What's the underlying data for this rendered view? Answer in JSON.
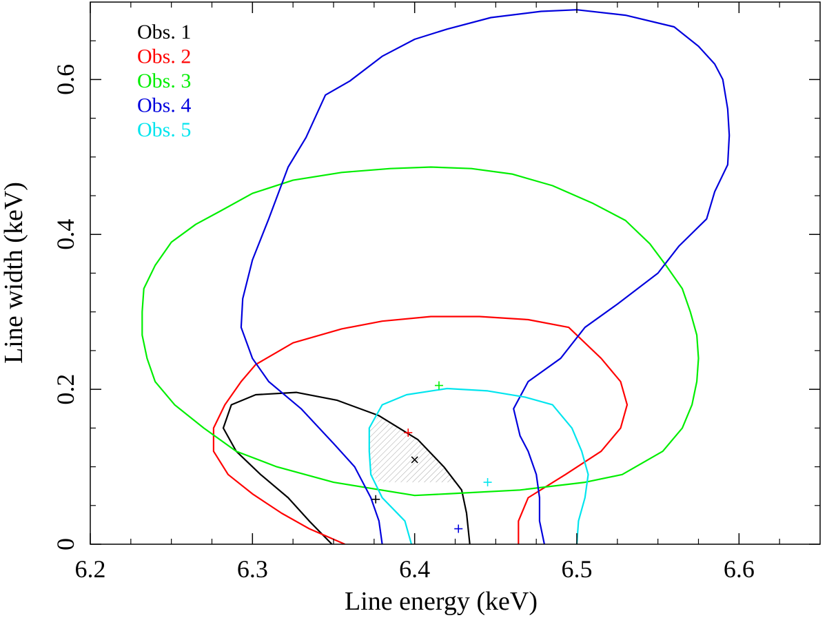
{
  "chart_data": {
    "type": "line",
    "title": "",
    "xlabel": "Line energy (keV)",
    "ylabel": "Line width (keV)",
    "xlim": [
      6.2,
      6.65
    ],
    "ylim": [
      0,
      0.7
    ],
    "xticks": [
      6.2,
      6.3,
      6.4,
      6.5,
      6.6
    ],
    "xtick_labels": [
      "6.2",
      "6.3",
      "6.4",
      "6.5",
      "6.6"
    ],
    "yticks": [
      0,
      0.2,
      0.4,
      0.6
    ],
    "ytick_labels": [
      "0",
      "0.2",
      "0.4",
      "0.6"
    ],
    "legend_position": "top-left",
    "grid": false,
    "series": [
      {
        "name": "Obs. 1",
        "color": "#000000",
        "closed": false,
        "points": [
          [
            6.349,
            0.0
          ],
          [
            6.335,
            0.03
          ],
          [
            6.322,
            0.06
          ],
          [
            6.305,
            0.09
          ],
          [
            6.29,
            0.12
          ],
          [
            6.282,
            0.15
          ],
          [
            6.287,
            0.18
          ],
          [
            6.302,
            0.193
          ],
          [
            6.327,
            0.196
          ],
          [
            6.352,
            0.186
          ],
          [
            6.378,
            0.166
          ],
          [
            6.402,
            0.135
          ],
          [
            6.418,
            0.1
          ],
          [
            6.429,
            0.07
          ],
          [
            6.432,
            0.04
          ],
          [
            6.434,
            0.0
          ]
        ],
        "best_fit": [
          6.376,
          0.058
        ],
        "best_fit_marker": "plus",
        "extra_marker": [
          6.4,
          0.109
        ],
        "extra_marker_style": "x"
      },
      {
        "name": "Obs. 2",
        "color": "#ff0000",
        "closed": false,
        "points": [
          [
            6.357,
            0.0
          ],
          [
            6.335,
            0.02
          ],
          [
            6.318,
            0.04
          ],
          [
            6.3,
            0.065
          ],
          [
            6.285,
            0.09
          ],
          [
            6.276,
            0.12
          ],
          [
            6.276,
            0.15
          ],
          [
            6.283,
            0.18
          ],
          [
            6.293,
            0.21
          ],
          [
            6.302,
            0.232
          ],
          [
            6.325,
            0.26
          ],
          [
            6.355,
            0.278
          ],
          [
            6.38,
            0.288
          ],
          [
            6.41,
            0.294
          ],
          [
            6.44,
            0.294
          ],
          [
            6.47,
            0.29
          ],
          [
            6.495,
            0.28
          ],
          [
            6.515,
            0.24
          ],
          [
            6.527,
            0.21
          ],
          [
            6.531,
            0.18
          ],
          [
            6.527,
            0.15
          ],
          [
            6.515,
            0.12
          ],
          [
            6.493,
            0.09
          ],
          [
            6.47,
            0.06
          ],
          [
            6.464,
            0.03
          ],
          [
            6.464,
            0.0
          ]
        ],
        "best_fit": [
          6.396,
          0.144
        ],
        "best_fit_marker": "plus"
      },
      {
        "name": "Obs. 3",
        "color": "#00ee00",
        "closed": true,
        "points": [
          [
            6.232,
            0.3
          ],
          [
            6.233,
            0.33
          ],
          [
            6.24,
            0.36
          ],
          [
            6.25,
            0.39
          ],
          [
            6.265,
            0.413
          ],
          [
            6.28,
            0.43
          ],
          [
            6.3,
            0.453
          ],
          [
            6.325,
            0.47
          ],
          [
            6.355,
            0.48
          ],
          [
            6.385,
            0.485
          ],
          [
            6.41,
            0.487
          ],
          [
            6.435,
            0.485
          ],
          [
            6.46,
            0.478
          ],
          [
            6.485,
            0.463
          ],
          [
            6.51,
            0.44
          ],
          [
            6.53,
            0.418
          ],
          [
            6.545,
            0.388
          ],
          [
            6.555,
            0.36
          ],
          [
            6.565,
            0.33
          ],
          [
            6.57,
            0.3
          ],
          [
            6.574,
            0.27
          ],
          [
            6.575,
            0.24
          ],
          [
            6.574,
            0.21
          ],
          [
            6.571,
            0.18
          ],
          [
            6.565,
            0.15
          ],
          [
            6.553,
            0.12
          ],
          [
            6.528,
            0.09
          ],
          [
            6.505,
            0.08
          ],
          [
            6.465,
            0.07
          ],
          [
            6.42,
            0.065
          ],
          [
            6.4,
            0.063
          ],
          [
            6.35,
            0.08
          ],
          [
            6.315,
            0.1
          ],
          [
            6.29,
            0.12
          ],
          [
            6.27,
            0.15
          ],
          [
            6.252,
            0.18
          ],
          [
            6.24,
            0.21
          ],
          [
            6.235,
            0.24
          ],
          [
            6.232,
            0.27
          ]
        ],
        "best_fit": [
          6.415,
          0.205
        ],
        "best_fit_marker": "plus"
      },
      {
        "name": "Obs. 4",
        "color": "#0000dd",
        "closed": false,
        "points": [
          [
            6.38,
            0.0
          ],
          [
            6.378,
            0.03
          ],
          [
            6.373,
            0.06
          ],
          [
            6.363,
            0.1
          ],
          [
            6.35,
            0.13
          ],
          [
            6.33,
            0.175
          ],
          [
            6.31,
            0.21
          ],
          [
            6.3,
            0.24
          ],
          [
            6.293,
            0.28
          ],
          [
            6.294,
            0.317
          ],
          [
            6.3,
            0.367
          ],
          [
            6.31,
            0.42
          ],
          [
            6.322,
            0.487
          ],
          [
            6.333,
            0.525
          ],
          [
            6.345,
            0.58
          ],
          [
            6.36,
            0.598
          ],
          [
            6.38,
            0.63
          ],
          [
            6.4,
            0.652
          ],
          [
            6.42,
            0.665
          ],
          [
            6.447,
            0.68
          ],
          [
            6.478,
            0.688
          ],
          [
            6.5,
            0.69
          ],
          [
            6.53,
            0.683
          ],
          [
            6.56,
            0.668
          ],
          [
            6.575,
            0.643
          ],
          [
            6.585,
            0.62
          ],
          [
            6.59,
            0.6
          ],
          [
            6.593,
            0.562
          ],
          [
            6.594,
            0.528
          ],
          [
            6.593,
            0.49
          ],
          [
            6.585,
            0.455
          ],
          [
            6.58,
            0.42
          ],
          [
            6.563,
            0.385
          ],
          [
            6.55,
            0.35
          ],
          [
            6.525,
            0.31
          ],
          [
            6.505,
            0.28
          ],
          [
            6.49,
            0.24
          ],
          [
            6.47,
            0.21
          ],
          [
            6.461,
            0.175
          ],
          [
            6.465,
            0.14
          ],
          [
            6.47,
            0.12
          ],
          [
            6.475,
            0.09
          ],
          [
            6.477,
            0.06
          ],
          [
            6.477,
            0.03
          ],
          [
            6.48,
            0.0
          ]
        ],
        "best_fit": [
          6.427,
          0.02
        ],
        "best_fit_marker": "plus"
      },
      {
        "name": "Obs. 5",
        "color": "#00e5ee",
        "closed": false,
        "points": [
          [
            6.398,
            0.0
          ],
          [
            6.394,
            0.03
          ],
          [
            6.38,
            0.06
          ],
          [
            6.373,
            0.09
          ],
          [
            6.372,
            0.12
          ],
          [
            6.372,
            0.15
          ],
          [
            6.38,
            0.18
          ],
          [
            6.395,
            0.193
          ],
          [
            6.42,
            0.201
          ],
          [
            6.445,
            0.198
          ],
          [
            6.468,
            0.19
          ],
          [
            6.485,
            0.18
          ],
          [
            6.497,
            0.15
          ],
          [
            6.503,
            0.12
          ],
          [
            6.507,
            0.09
          ],
          [
            6.505,
            0.06
          ],
          [
            6.501,
            0.03
          ],
          [
            6.5,
            0.0
          ]
        ],
        "best_fit": [
          6.445,
          0.08
        ],
        "best_fit_marker": "plus"
      }
    ],
    "shaded_region": {
      "description": "overlap of Obs. 1 and Obs. 5 contours",
      "fill": "hatched-gray",
      "points": [
        [
          6.372,
          0.15
        ],
        [
          6.378,
          0.166
        ],
        [
          6.402,
          0.135
        ],
        [
          6.418,
          0.1
        ],
        [
          6.425,
          0.08
        ],
        [
          6.378,
          0.08
        ],
        [
          6.373,
          0.09
        ],
        [
          6.372,
          0.12
        ]
      ]
    }
  }
}
